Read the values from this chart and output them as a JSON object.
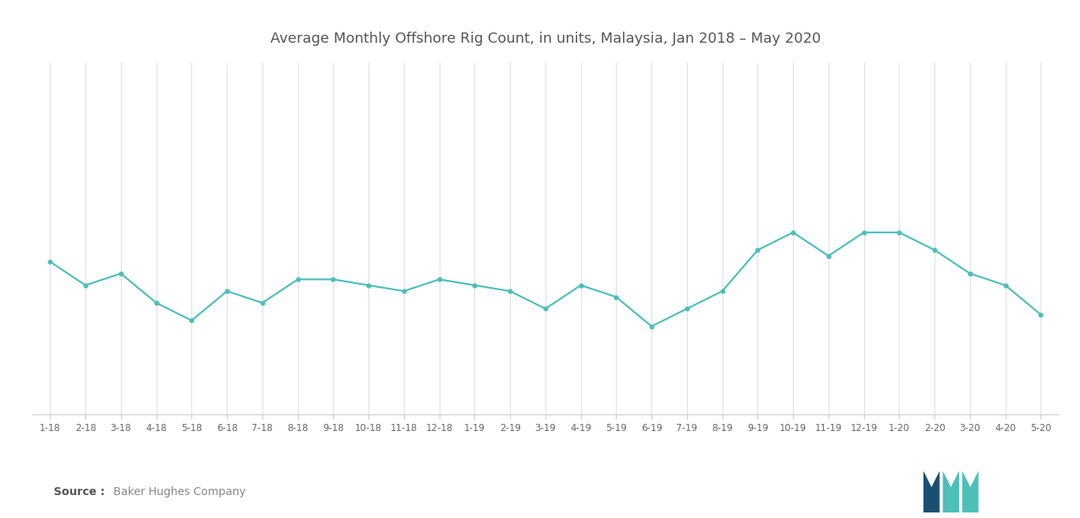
{
  "title": "Average Monthly Offshore Rig Count, in units, Malaysia, Jan 2018 – May 2020",
  "source_bold": "Source :",
  "source_normal": " Baker Hughes Company",
  "line_color": "#4CBFB8",
  "background_color": "#ffffff",
  "grid_color": "#e0e0e0",
  "labels": [
    "1-18",
    "2-18",
    "3-18",
    "4-18",
    "5-18",
    "6-18",
    "7-18",
    "8-18",
    "9-18",
    "10-18",
    "11-18",
    "12-18",
    "1-19",
    "2-19",
    "3-19",
    "4-19",
    "5-19",
    "6-19",
    "7-19",
    "8-19",
    "9-19",
    "10-19",
    "11-19",
    "12-19",
    "1-20",
    "2-20",
    "3-20",
    "4-20",
    "5-20"
  ],
  "values": [
    26,
    22,
    24,
    19,
    16,
    21,
    19,
    23,
    23,
    22,
    21,
    23,
    22,
    21,
    18,
    22,
    20,
    15,
    18,
    21,
    28,
    31,
    27,
    31,
    31,
    28,
    24,
    22,
    17
  ],
  "ylim": [
    0,
    60
  ],
  "title_fontsize": 13,
  "tick_fontsize": 8.5,
  "title_color": "#555555",
  "logo_left_color": "#1B4F72",
  "logo_right_color": "#4CBFB8"
}
